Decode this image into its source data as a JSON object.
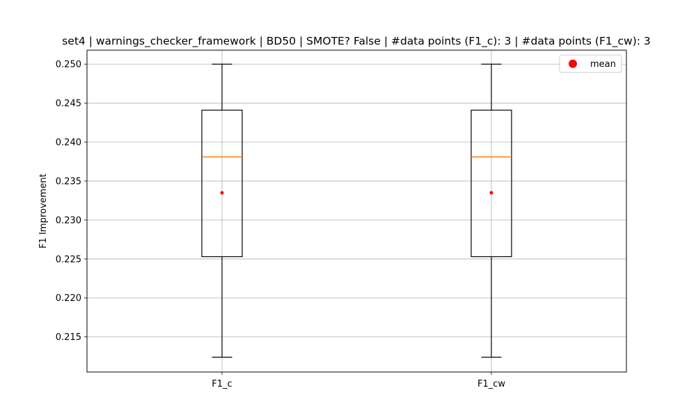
{
  "chart_data": {
    "type": "box",
    "title": "set4 | warnings_checker_framework | BD50 | SMOTE? False | #data points (F1_c): 3 | #data points (F1_cw): 3",
    "xlabel": "",
    "ylabel": "F1 Improvement",
    "ylim": [
      0.2105,
      0.2518
    ],
    "yticks": [
      "0.215",
      "0.220",
      "0.225",
      "0.230",
      "0.235",
      "0.240",
      "0.245",
      "0.250"
    ],
    "ytick_values": [
      0.215,
      0.22,
      0.225,
      0.23,
      0.235,
      0.24,
      0.245,
      0.25
    ],
    "grid": true,
    "legend": {
      "position": "top-right",
      "entries": [
        {
          "label": "mean",
          "color": "#ff0000",
          "marker": "circle"
        }
      ]
    },
    "categories": [
      "F1_c",
      "F1_cw"
    ],
    "boxes": [
      {
        "label": "F1_c",
        "whisker_low": 0.2124,
        "q1": 0.2253,
        "median": 0.2381,
        "q3": 0.2441,
        "whisker_high": 0.25,
        "mean": 0.2335
      },
      {
        "label": "F1_cw",
        "whisker_low": 0.2124,
        "q1": 0.2253,
        "median": 0.2381,
        "q3": 0.2441,
        "whisker_high": 0.25,
        "mean": 0.2335
      }
    ],
    "colors": {
      "box": "#000000",
      "median": "#ff7f0e",
      "mean": "#ff0000",
      "grid": "#b0b0b0"
    }
  }
}
